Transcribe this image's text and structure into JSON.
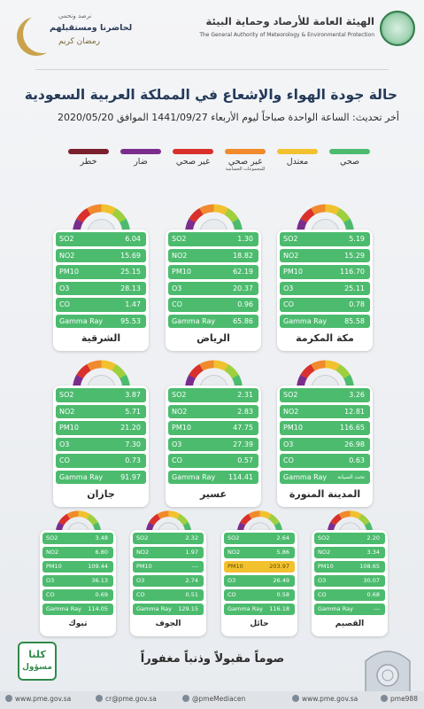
{
  "header": {
    "org_ar": "الهيئة العامة للأرصاد وحماية البيئة",
    "org_en": "The General Authority of Meteorology & Environmental Protection",
    "ramadan_small": "نرصد ونحمي",
    "ramadan_big": "لحاضرنا ومستقبلهم",
    "ramadan_kareem": "رمضان كريم"
  },
  "title": "حالة جودة الهواء والإشعاع في المملكة العربية السعودية",
  "update": "أخر تحديث: الساعة الواحدة صباحاً ليوم الأربعاء 1441/09/27 الموافق 2020/05/20",
  "legend": [
    {
      "label": "صحي",
      "color": "#4cbb6e",
      "sub": ""
    },
    {
      "label": "معتدل",
      "color": "#f2c12e",
      "sub": ""
    },
    {
      "label": "غير صحي",
      "color": "#f08a2c",
      "sub": "للمجموعات الحساسة"
    },
    {
      "label": "غير صحي",
      "color": "#d9302c",
      "sub": ""
    },
    {
      "label": "ضار",
      "color": "#7b2d8e",
      "sub": ""
    },
    {
      "label": "خطر",
      "color": "#7a1f2b",
      "sub": ""
    }
  ],
  "stations": [
    {
      "name": "الشرقية",
      "rows": [
        {
          "k": "SO2",
          "v": "6.04"
        },
        {
          "k": "NO2",
          "v": "15.69"
        },
        {
          "k": "PM10",
          "v": "25.15"
        },
        {
          "k": "O3",
          "v": "28.13"
        },
        {
          "k": "CO",
          "v": "1.47"
        },
        {
          "k": "Gamma Ray",
          "v": "95.53"
        }
      ]
    },
    {
      "name": "الرياض",
      "rows": [
        {
          "k": "SO2",
          "v": "1.30"
        },
        {
          "k": "NO2",
          "v": "18.82"
        },
        {
          "k": "PM10",
          "v": "62.19"
        },
        {
          "k": "O3",
          "v": "20.37"
        },
        {
          "k": "CO",
          "v": "0.96"
        },
        {
          "k": "Gamma Ray",
          "v": "65.86"
        }
      ]
    },
    {
      "name": "مكة المكرمة",
      "rows": [
        {
          "k": "SO2",
          "v": "5.19"
        },
        {
          "k": "NO2",
          "v": "15.29"
        },
        {
          "k": "PM10",
          "v": "116.70"
        },
        {
          "k": "O3",
          "v": "25.11"
        },
        {
          "k": "CO",
          "v": "0.78"
        },
        {
          "k": "Gamma Ray",
          "v": "85.58"
        }
      ]
    },
    {
      "name": "جازان",
      "rows": [
        {
          "k": "SO2",
          "v": "3.87"
        },
        {
          "k": "NO2",
          "v": "5.71"
        },
        {
          "k": "PM10",
          "v": "21.20"
        },
        {
          "k": "O3",
          "v": "7.30"
        },
        {
          "k": "CO",
          "v": "0.73"
        },
        {
          "k": "Gamma Ray",
          "v": "91.97"
        }
      ]
    },
    {
      "name": "عسير",
      "rows": [
        {
          "k": "SO2",
          "v": "2.31"
        },
        {
          "k": "NO2",
          "v": "2.83"
        },
        {
          "k": "PM10",
          "v": "47.75"
        },
        {
          "k": "O3",
          "v": "27.39"
        },
        {
          "k": "CO",
          "v": "0.57"
        },
        {
          "k": "Gamma Ray",
          "v": "114.41"
        }
      ]
    },
    {
      "name": "المدينة المنورة",
      "rows": [
        {
          "k": "SO2",
          "v": "3.26"
        },
        {
          "k": "NO2",
          "v": "12.81"
        },
        {
          "k": "PM10",
          "v": "116.65"
        },
        {
          "k": "O3",
          "v": "26.98"
        },
        {
          "k": "CO",
          "v": "0.63"
        },
        {
          "k": "Gamma Ray",
          "v": "تحت الصيانة"
        }
      ]
    },
    {
      "name": "تبوك",
      "rows": [
        {
          "k": "SO2",
          "v": "3.48"
        },
        {
          "k": "NO2",
          "v": "6.80"
        },
        {
          "k": "PM10",
          "v": "109.44"
        },
        {
          "k": "O3",
          "v": "36.13"
        },
        {
          "k": "CO",
          "v": "0.69"
        },
        {
          "k": "Gamma Ray",
          "v": "114.05"
        }
      ]
    },
    {
      "name": "الجوف",
      "rows": [
        {
          "k": "SO2",
          "v": "2.32"
        },
        {
          "k": "NO2",
          "v": "1.97"
        },
        {
          "k": "PM10",
          "v": "---"
        },
        {
          "k": "O3",
          "v": "2.74"
        },
        {
          "k": "CO",
          "v": "0.51"
        },
        {
          "k": "Gamma Ray",
          "v": "129.15"
        }
      ]
    },
    {
      "name": "حائل",
      "rows": [
        {
          "k": "SO2",
          "v": "2.64"
        },
        {
          "k": "NO2",
          "v": "5.86"
        },
        {
          "k": "PM10",
          "v": "203.97",
          "level": "moderate"
        },
        {
          "k": "O3",
          "v": "26.49"
        },
        {
          "k": "CO",
          "v": "0.58"
        },
        {
          "k": "Gamma Ray",
          "v": "116.18"
        }
      ]
    },
    {
      "name": "القصيم",
      "rows": [
        {
          "k": "SO2",
          "v": "2.20"
        },
        {
          "k": "NO2",
          "v": "3.34"
        },
        {
          "k": "PM10",
          "v": "108.65"
        },
        {
          "k": "O3",
          "v": "30.07"
        },
        {
          "k": "CO",
          "v": "0.68"
        },
        {
          "k": "Gamma Ray",
          "v": "---"
        }
      ]
    }
  ],
  "footer": {
    "badge_top": "كلنا",
    "badge_bottom": "مسؤول",
    "slogan": "صوماً مقبولاً وذنباً مغفوراً",
    "links": [
      {
        "icon": "globe-icon",
        "text": "www.pme.gov.sa"
      },
      {
        "icon": "mail-icon",
        "text": "cr@pme.gov.sa"
      },
      {
        "icon": "social-icon",
        "text": "@pmeMediacen"
      },
      {
        "icon": "globe-icon",
        "text": "www.pme.gov.sa"
      },
      {
        "icon": "phone-icon",
        "text": "pme988"
      }
    ]
  }
}
